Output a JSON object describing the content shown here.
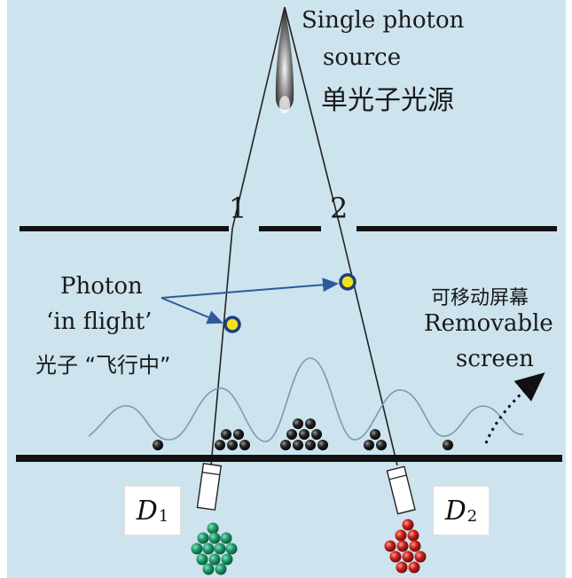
{
  "labels": {
    "source_en_line1": "Single photon",
    "source_en_line2": "source",
    "source_cn": "单光子光源",
    "slit_1": "1",
    "slit_2": "2",
    "photon_en_line1": "Photon",
    "photon_en_line2": "‘in flight’",
    "photon_cn": "光子 “飞行中”",
    "screen_cn": "可移动屏幕",
    "screen_en_line1": "Removable",
    "screen_en_line2": "screen",
    "detector_1": "D",
    "detector_1_sub": "1",
    "detector_2": "D",
    "detector_2_sub": "2"
  },
  "colors": {
    "background": "#cde3ee",
    "barrier": "#111111",
    "beam": "#222222",
    "photon_fill": "#f3e21a",
    "photon_ring": "#1f3f7a",
    "arrow": "#2d5a9a",
    "wave": "#7f9aa8",
    "screen_dots": "#1c1c1c",
    "detector_1_dots": "#1f9a6a",
    "detector_2_dots": "#c8201a"
  },
  "icons": {
    "source": "photon-source-icon",
    "photon": "photon-dot-icon",
    "detector": "detector-tube-icon"
  }
}
